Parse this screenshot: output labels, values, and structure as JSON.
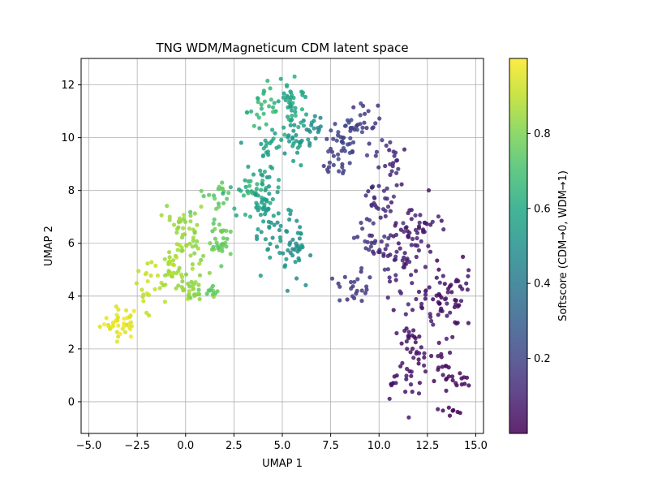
{
  "chart_data": {
    "type": "scatter",
    "title": "TNG WDM/Magneticum CDM latent space",
    "xlabel": "UMAP 1",
    "ylabel": "UMAP 2",
    "xlim": [
      -5.4,
      15.4
    ],
    "ylim": [
      -1.2,
      13.0
    ],
    "xticks": [
      -5.0,
      -2.5,
      0.0,
      2.5,
      5.0,
      7.5,
      10.0,
      12.5,
      15.0
    ],
    "xtick_labels": [
      "−5.0",
      "−2.5",
      "0.0",
      "2.5",
      "5.0",
      "7.5",
      "10.0",
      "12.5",
      "15.0"
    ],
    "yticks": [
      0,
      2,
      4,
      6,
      8,
      10,
      12
    ],
    "ytick_labels": [
      "0",
      "2",
      "4",
      "6",
      "8",
      "10",
      "12"
    ],
    "grid": true,
    "colormap": "viridis",
    "point_alpha": 0.85,
    "colorbar": {
      "label": "Softscore (CDM→0, WDM→1)",
      "range": [
        0.0,
        1.0
      ],
      "ticks": [
        0.2,
        0.4,
        0.6,
        0.8
      ],
      "tick_labels": [
        "0.2",
        "0.4",
        "0.6",
        "0.8"
      ]
    },
    "clusters": [
      {
        "center": [
          -3.4,
          3.0
        ],
        "sd": [
          0.5,
          0.3
        ],
        "n": 40,
        "score": [
          0.93,
          0.99
        ]
      },
      {
        "center": [
          -2.0,
          4.4
        ],
        "sd": [
          0.3,
          0.5
        ],
        "n": 20,
        "score": [
          0.88,
          0.94
        ]
      },
      {
        "center": [
          -0.7,
          5.0
        ],
        "sd": [
          0.4,
          0.5
        ],
        "n": 35,
        "score": [
          0.84,
          0.9
        ]
      },
      {
        "center": [
          0.3,
          4.3
        ],
        "sd": [
          0.4,
          0.3
        ],
        "n": 30,
        "score": [
          0.8,
          0.86
        ]
      },
      {
        "center": [
          1.2,
          4.2
        ],
        "sd": [
          0.3,
          0.1
        ],
        "n": 10,
        "score": [
          0.72,
          0.78
        ]
      },
      {
        "center": [
          -0.2,
          6.6
        ],
        "sd": [
          0.3,
          0.4
        ],
        "n": 25,
        "score": [
          0.82,
          0.88
        ]
      },
      {
        "center": [
          0.5,
          6.0
        ],
        "sd": [
          0.3,
          0.5
        ],
        "n": 20,
        "score": [
          0.8,
          0.86
        ]
      },
      {
        "center": [
          1.8,
          6.1
        ],
        "sd": [
          0.3,
          0.4
        ],
        "n": 30,
        "score": [
          0.74,
          0.8
        ]
      },
      {
        "center": [
          1.6,
          7.8
        ],
        "sd": [
          0.4,
          0.4
        ],
        "n": 20,
        "score": [
          0.72,
          0.78
        ]
      },
      {
        "center": [
          3.0,
          7.9
        ],
        "sd": [
          0.5,
          0.5
        ],
        "n": 30,
        "score": [
          0.58,
          0.68
        ]
      },
      {
        "center": [
          4.1,
          7.3
        ],
        "sd": [
          0.4,
          0.5
        ],
        "n": 35,
        "score": [
          0.5,
          0.6
        ]
      },
      {
        "center": [
          4.3,
          6.2
        ],
        "sd": [
          0.4,
          0.5
        ],
        "n": 20,
        "score": [
          0.48,
          0.56
        ]
      },
      {
        "center": [
          5.5,
          6.0
        ],
        "sd": [
          0.4,
          0.6
        ],
        "n": 40,
        "score": [
          0.46,
          0.56
        ]
      },
      {
        "center": [
          4.3,
          9.2
        ],
        "sd": [
          0.5,
          0.6
        ],
        "n": 30,
        "score": [
          0.52,
          0.62
        ]
      },
      {
        "center": [
          4.0,
          11.2
        ],
        "sd": [
          0.4,
          0.4
        ],
        "n": 25,
        "score": [
          0.62,
          0.7
        ]
      },
      {
        "center": [
          5.4,
          11.5
        ],
        "sd": [
          0.5,
          0.6
        ],
        "n": 40,
        "score": [
          0.55,
          0.65
        ]
      },
      {
        "center": [
          5.5,
          10.0
        ],
        "sd": [
          0.4,
          0.5
        ],
        "n": 30,
        "score": [
          0.5,
          0.58
        ]
      },
      {
        "center": [
          6.5,
          10.3
        ],
        "sd": [
          0.4,
          0.3
        ],
        "n": 15,
        "score": [
          0.44,
          0.5
        ]
      },
      {
        "center": [
          8.0,
          9.5
        ],
        "sd": [
          0.5,
          0.6
        ],
        "n": 40,
        "score": [
          0.15,
          0.22
        ]
      },
      {
        "center": [
          8.5,
          10.3
        ],
        "sd": [
          0.3,
          0.3
        ],
        "n": 15,
        "score": [
          0.18,
          0.24
        ]
      },
      {
        "center": [
          9.3,
          10.7
        ],
        "sd": [
          0.4,
          0.5
        ],
        "n": 20,
        "score": [
          0.13,
          0.2
        ]
      },
      {
        "center": [
          10.0,
          7.5
        ],
        "sd": [
          0.6,
          0.5
        ],
        "n": 30,
        "score": [
          0.1,
          0.18
        ]
      },
      {
        "center": [
          10.7,
          9.0
        ],
        "sd": [
          0.4,
          0.4
        ],
        "n": 20,
        "score": [
          0.08,
          0.14
        ]
      },
      {
        "center": [
          9.8,
          5.8
        ],
        "sd": [
          0.6,
          0.6
        ],
        "n": 30,
        "score": [
          0.1,
          0.18
        ]
      },
      {
        "center": [
          8.7,
          4.3
        ],
        "sd": [
          0.5,
          0.3
        ],
        "n": 20,
        "score": [
          0.13,
          0.2
        ]
      },
      {
        "center": [
          11.0,
          5.5
        ],
        "sd": [
          0.6,
          0.9
        ],
        "n": 40,
        "score": [
          0.06,
          0.12
        ]
      },
      {
        "center": [
          12.2,
          6.5
        ],
        "sd": [
          0.5,
          0.7
        ],
        "n": 35,
        "score": [
          0.05,
          0.11
        ]
      },
      {
        "center": [
          12.5,
          3.8
        ],
        "sd": [
          0.7,
          0.8
        ],
        "n": 40,
        "score": [
          0.04,
          0.1
        ]
      },
      {
        "center": [
          13.8,
          4.0
        ],
        "sd": [
          0.5,
          0.6
        ],
        "n": 35,
        "score": [
          0.02,
          0.07
        ]
      },
      {
        "center": [
          11.8,
          1.5
        ],
        "sd": [
          0.5,
          0.8
        ],
        "n": 40,
        "score": [
          0.03,
          0.08
        ]
      },
      {
        "center": [
          13.4,
          1.2
        ],
        "sd": [
          0.4,
          0.7
        ],
        "n": 25,
        "score": [
          0.02,
          0.06
        ]
      },
      {
        "center": [
          14.3,
          0.7
        ],
        "sd": [
          0.2,
          0.2
        ],
        "n": 8,
        "score": [
          0.01,
          0.04
        ]
      },
      {
        "center": [
          13.9,
          -0.4
        ],
        "sd": [
          0.2,
          0.1
        ],
        "n": 5,
        "score": [
          0.0,
          0.03
        ]
      },
      {
        "center": [
          10.8,
          0.7
        ],
        "sd": [
          0.2,
          0.2
        ],
        "n": 8,
        "score": [
          0.04,
          0.08
        ]
      }
    ]
  }
}
